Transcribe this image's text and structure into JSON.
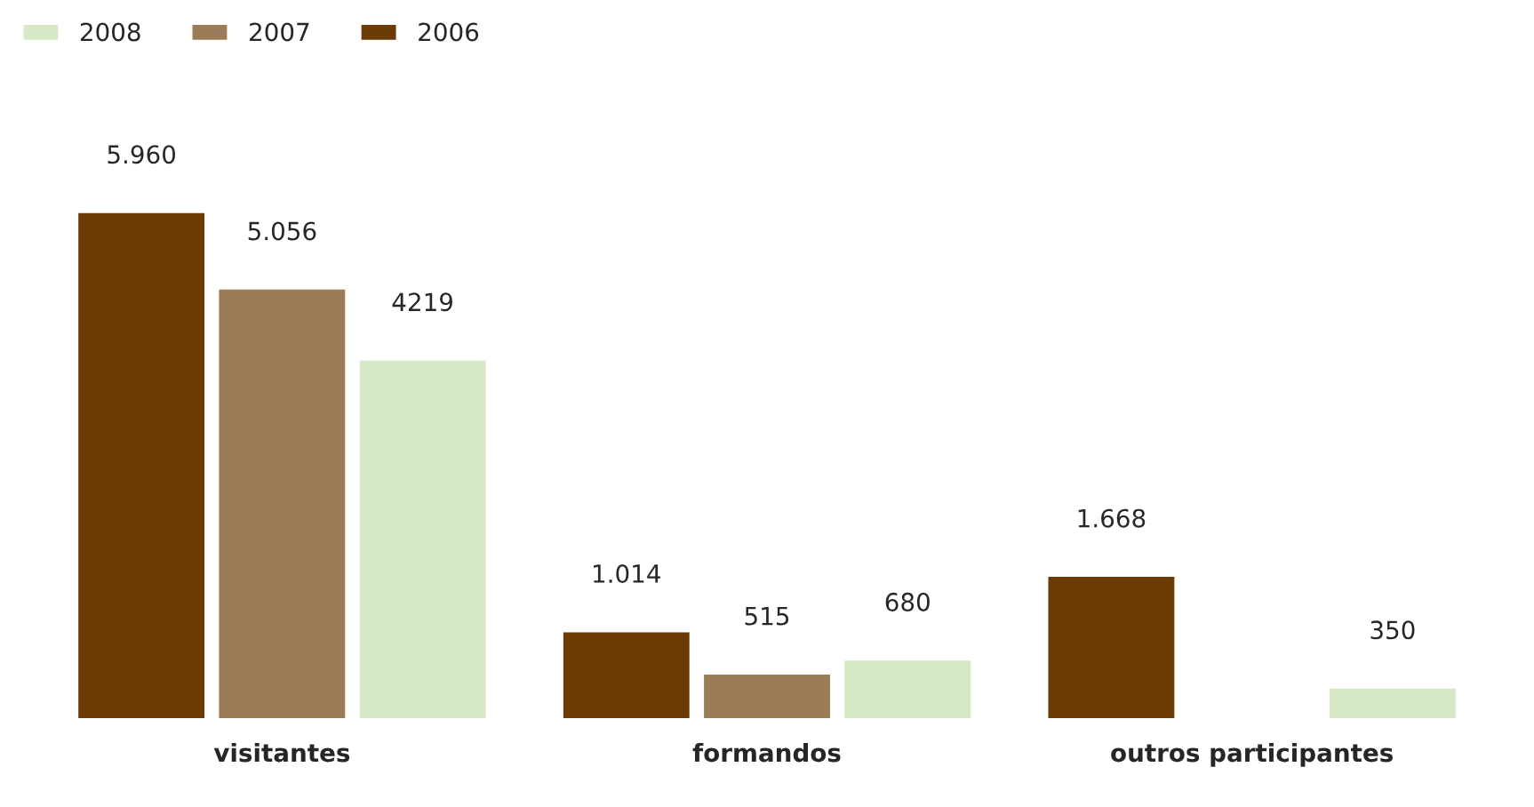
{
  "chart_data": {
    "type": "bar",
    "categories": [
      "visitantes",
      "formandos",
      "outros participantes"
    ],
    "series": [
      {
        "name": "2006",
        "color": "#6b3a05",
        "values": [
          5960,
          1014,
          1668
        ],
        "value_labels": [
          "5.960",
          "1.014",
          "1.668"
        ]
      },
      {
        "name": "2007",
        "color": "#9c7b58",
        "values": [
          5056,
          515,
          null
        ],
        "value_labels": [
          "5.056",
          "515",
          null
        ]
      },
      {
        "name": "2008",
        "color": "#d6e9c4",
        "values": [
          4219,
          680,
          350
        ],
        "value_labels": [
          "4219",
          "680",
          "350"
        ]
      }
    ],
    "legend": "top left",
    "grid": false,
    "tick_labels": "x"
  }
}
